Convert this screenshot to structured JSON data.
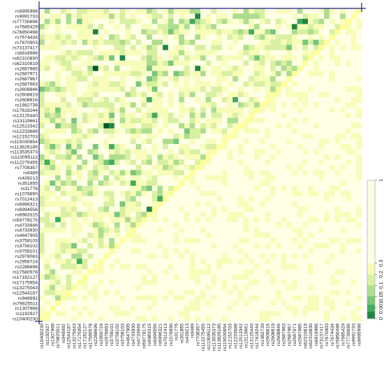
{
  "chart_data": {
    "type": "heatmap",
    "title": "",
    "xlabel": "",
    "ylabel": "",
    "row_labels": [
      "rs9995998",
      "rs9991733",
      "rs77730696",
      "rs7685429",
      "rs76850498",
      "rs7674434",
      "rs7670903",
      "rs73137417",
      "rs6816986",
      "rs62310830",
      "rs62310819",
      "rs2687985",
      "rs2687971",
      "rs2687967",
      "rs2687963",
      "rs2608846",
      "rs2608819",
      "rs2608816",
      "rs1982739",
      "rs17618244",
      "rs13125440",
      "rs13119661",
      "rs12513342",
      "rs12233688",
      "rs12152703",
      "rs115030854",
      "rs113826185",
      "rs113535373",
      "rs113095112",
      "rs112275455",
      "rs7708357",
      "rs9489",
      "rs439213",
      "rs351855",
      "rs31776",
      "rs1076890",
      "rs7012413",
      "rs6996321",
      "rs6994556",
      "rs6983315",
      "rs59778175",
      "rs4733946",
      "rs4733930",
      "rs4647905",
      "rs3758103",
      "rs3758102",
      "rs3758101",
      "rs2978063",
      "rs2956724",
      "rs2288696",
      "rs17580578",
      "rs17182127",
      "rs17175954",
      "rs13275043",
      "rs12544187",
      "rs948992",
      "rs79825511",
      "rs1307968",
      "rs1192927",
      "rs10400230"
    ],
    "col_labels": [
      "rs10400230",
      "rs1192927",
      "rs1307968",
      "rs79825511",
      "rs948992",
      "rs12544187",
      "rs13275043",
      "rs17175954",
      "rs17182127",
      "rs17580578",
      "rs2288696",
      "rs2956724",
      "rs2978063",
      "rs3758101",
      "rs3758102",
      "rs3758103",
      "rs4647905",
      "rs4733930",
      "rs4733946",
      "rs59778175",
      "rs6983315",
      "rs6994556",
      "rs6996321",
      "rs7012413",
      "rs1076890",
      "rs31776",
      "rs351855",
      "rs439213",
      "rs9489",
      "rs7708357",
      "rs112275455",
      "rs113095112",
      "rs113535373",
      "rs113826185",
      "rs115030854",
      "rs12152703",
      "rs12233688",
      "rs12513342",
      "rs13119661",
      "rs13125440",
      "rs17618244",
      "rs1982739",
      "rs2608816",
      "rs2608819",
      "rs2608846",
      "rs2687963",
      "rs2687967",
      "rs2687971",
      "rs2687985",
      "rs62310819",
      "rs62310830",
      "rs6816986",
      "rs73137417",
      "rs7670903",
      "rs7674434",
      "rs76850498",
      "rs7685429",
      "rs77730696",
      "rs9991733",
      "rs9995998"
    ],
    "colorbar": {
      "tick_labels": [
        "1",
        "0.3",
        "0.2",
        "0.1",
        "0.05",
        "0.001",
        "0"
      ],
      "tick_values": [
        1,
        0.3,
        0.2,
        0.1,
        0.05,
        0.001,
        0
      ],
      "colors": [
        "#ffffe5",
        "#f7fcb9",
        "#d9f0a3",
        "#addd8e",
        "#78c679",
        "#41ab5d",
        "#238443",
        "#005a32"
      ]
    },
    "grid": false,
    "legend_position": "right",
    "diagonal_color": "#ffff99",
    "axis_color": "#1a1a8c"
  }
}
